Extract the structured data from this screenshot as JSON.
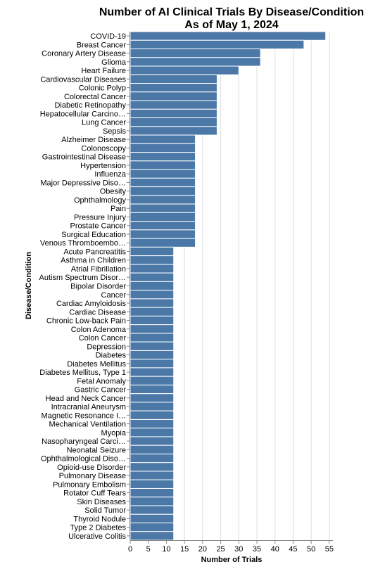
{
  "chart_data": {
    "type": "bar",
    "orientation": "horizontal",
    "title": [
      "Number of AI Clinical Trials By Disease/Condition",
      "As of May 1, 2024"
    ],
    "xlabel": "Number of Trials",
    "ylabel": "Disease/Condition",
    "xlim": [
      0,
      56
    ],
    "xticks": [
      0,
      5,
      10,
      15,
      20,
      25,
      30,
      35,
      40,
      45,
      50,
      55
    ],
    "grid": true,
    "bar_color": "#4c78a8",
    "categories": [
      "COVID-19",
      "Breast Cancer",
      "Coronary Artery Disease",
      "Glioma",
      "Heart Failure",
      "Cardiovascular Diseases",
      "Colonic Polyp",
      "Colorectal Cancer",
      "Diabetic Retinopathy",
      "Hepatocellular Carcino…",
      "Lung Cancer",
      "Sepsis",
      "Alzheimer Disease",
      "Colonoscopy",
      "Gastrointestinal Disease",
      "Hypertension",
      "Influenza",
      "Major Depressive Diso…",
      "Obesity",
      "Ophthalmology",
      "Pain",
      "Pressure Injury",
      "Prostate Cancer",
      "Surgical Education",
      "Venous Thromboembo…",
      "Acute Pancreatitis",
      "Asthma in Children",
      "Atrial Fibrillation",
      "Autism Spectrum Disor…",
      "Bipolar Disorder",
      "Cancer",
      "Cardiac Amyloidosis",
      "Cardiac Disease",
      "Chronic Low-back Pain",
      "Colon Adenoma",
      "Colon Cancer",
      "Depression",
      "Diabetes",
      "Diabetes Mellitus",
      "Diabetes Mellitus, Type 1",
      "Fetal Anomaly",
      "Gastric Cancer",
      "Head and Neck Cancer",
      "Intracranial Aneurysm",
      "Magnetic Resonance I…",
      "Mechanical Ventilation",
      "Myopia",
      "Nasopharyngeal Carci…",
      "Neonatal Seizure",
      "Ophthalmological Diso…",
      "Opioid-use Disorder",
      "Pulmonary Disease",
      "Pulmonary Embolism",
      "Rotator Cuff Tears",
      "Skin Diseases",
      "Solid Tumor",
      "Thyroid Nodule",
      "Type 2 Diabetes",
      "Ulcerative Colitis"
    ],
    "values": [
      54,
      48,
      36,
      36,
      30,
      24,
      24,
      24,
      24,
      24,
      24,
      24,
      18,
      18,
      18,
      18,
      18,
      18,
      18,
      18,
      18,
      18,
      18,
      18,
      18,
      12,
      12,
      12,
      12,
      12,
      12,
      12,
      12,
      12,
      12,
      12,
      12,
      12,
      12,
      12,
      12,
      12,
      12,
      12,
      12,
      12,
      12,
      12,
      12,
      12,
      12,
      12,
      12,
      12,
      12,
      12,
      12,
      12,
      12
    ]
  }
}
